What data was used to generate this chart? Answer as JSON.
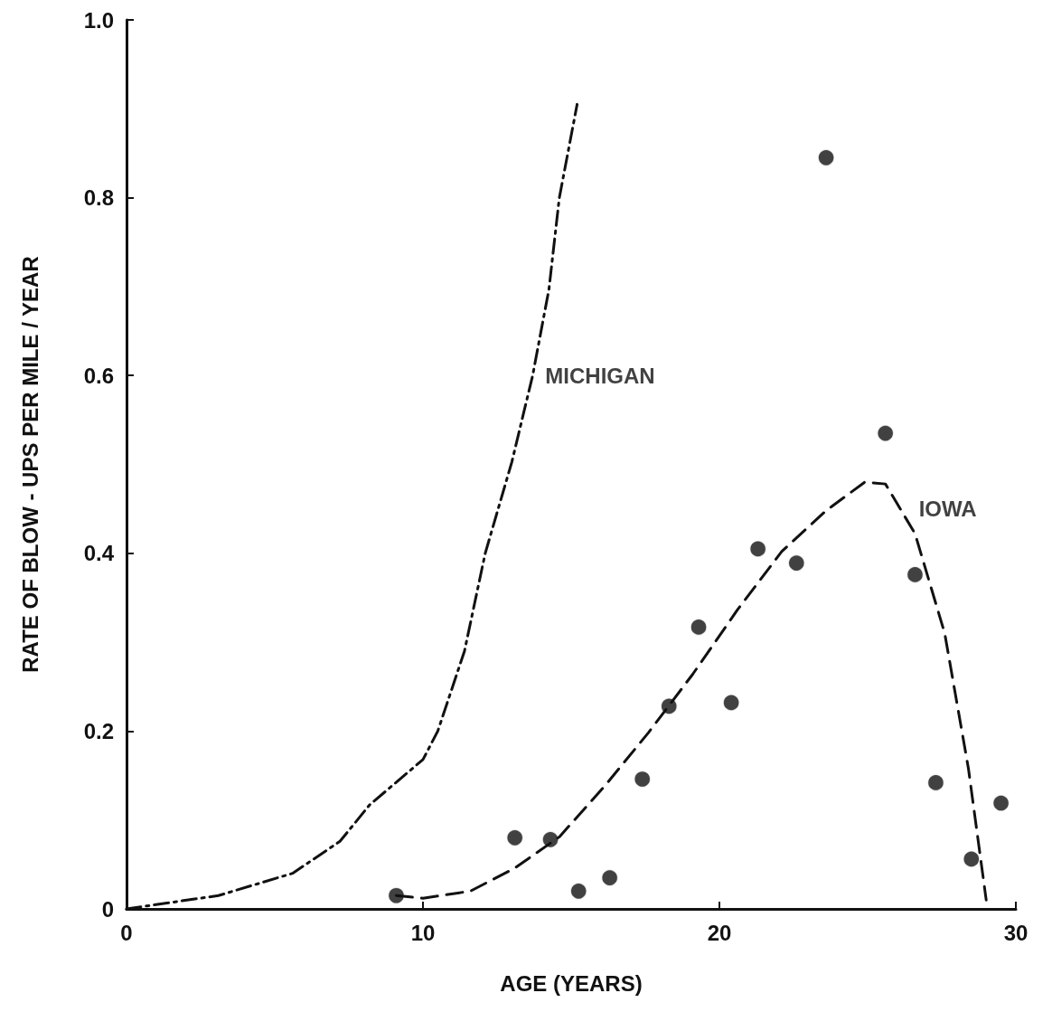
{
  "chart_data": {
    "type": "scatter",
    "xlabel": "AGE (YEARS)",
    "ylabel": "RATE OF BLOW - UPS PER MILE / YEAR",
    "xlim": [
      0,
      30
    ],
    "xticks": [
      0,
      10,
      20,
      30
    ],
    "ylim": [
      0,
      1
    ],
    "yticks": [
      0,
      0.2,
      0.4,
      0.6,
      0.8,
      {
        "value": 1,
        "label": "1.0"
      }
    ],
    "grid": false,
    "series": [
      {
        "color": "#111111",
        "marker": "circle",
        "x": [
          9.1,
          13.1,
          14.3,
          15.25,
          16.3,
          17.4,
          18.3,
          19.3,
          20.4,
          21.3,
          22.6,
          23.6,
          25.6,
          26.6,
          27.3,
          28.5,
          29.5
        ],
        "values": [
          0.015,
          0.08,
          0.078,
          0.02,
          0.035,
          0.146,
          0.228,
          0.317,
          0.232,
          0.405,
          0.389,
          0.845,
          0.535,
          0.376,
          0.142,
          0.056,
          0.119
        ]
      },
      {
        "type": "line",
        "color": "#111111",
        "marker": "none",
        "line_style": "dashdot",
        "x": [
          0,
          3.1,
          5.6,
          7.2,
          8.2,
          10,
          10.5,
          11.4,
          12.1,
          13,
          13.7,
          14.25,
          14.6,
          15.2
        ],
        "values": [
          0,
          0.015,
          0.04,
          0.076,
          0.117,
          0.168,
          0.2,
          0.29,
          0.4,
          0.503,
          0.6,
          0.697,
          0.8,
          0.905
        ]
      },
      {
        "type": "line",
        "color": "#111111",
        "marker": "none",
        "line_style": "dashed",
        "x": [
          9.1,
          10,
          11.6,
          13.1,
          14.6,
          16.1,
          17.6,
          19.1,
          20.6,
          22.1,
          23.6,
          24.9,
          25.6,
          26.6,
          27.6,
          28.4,
          29
        ],
        "values": [
          0.015,
          0.012,
          0.02,
          0.046,
          0.081,
          0.137,
          0.198,
          0.264,
          0.336,
          0.402,
          0.448,
          0.48,
          0.478,
          0.422,
          0.31,
          0.158,
          0.01
        ]
      }
    ],
    "annotations": [
      {
        "text": "MICHIGAN",
        "x": 13.7,
        "y": 0.6
      },
      {
        "text": "IOWA",
        "x": 26.3,
        "y": 0.45
      }
    ]
  }
}
